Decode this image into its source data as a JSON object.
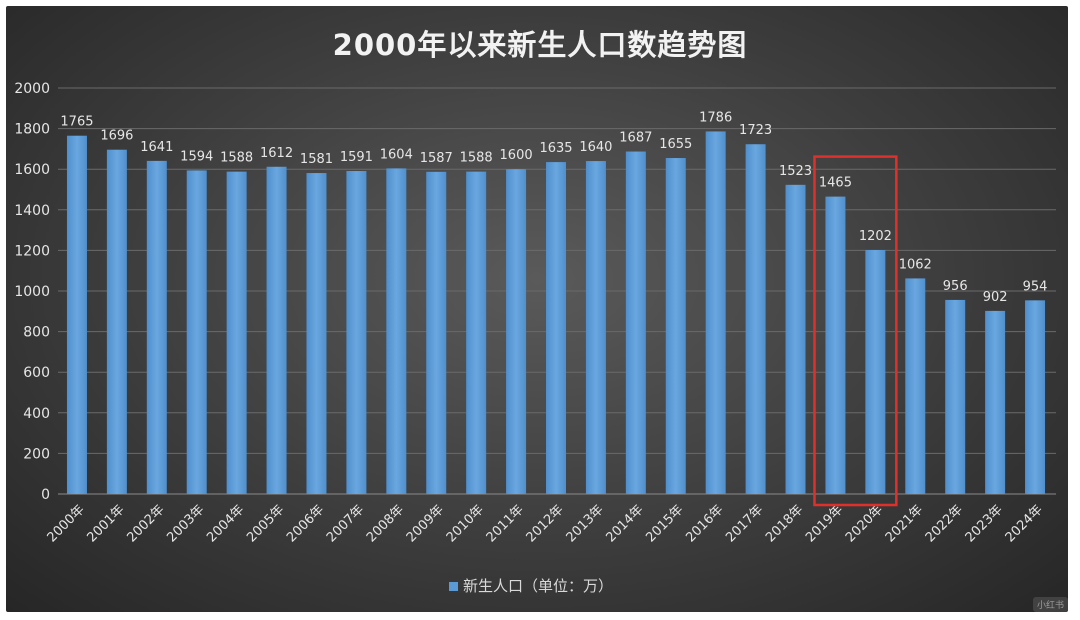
{
  "chart_data": {
    "type": "bar",
    "title": "2000年以来新生人口数趋势图",
    "categories": [
      "2000年",
      "2001年",
      "2002年",
      "2003年",
      "2004年",
      "2005年",
      "2006年",
      "2007年",
      "2008年",
      "2009年",
      "2010年",
      "2011年",
      "2012年",
      "2013年",
      "2014年",
      "2015年",
      "2016年",
      "2017年",
      "2018年",
      "2019年",
      "2020年",
      "2021年",
      "2022年",
      "2023年",
      "2024年"
    ],
    "series": [
      {
        "name": "新生人口（单位：万）",
        "values": [
          1765,
          1696,
          1641,
          1594,
          1588,
          1612,
          1581,
          1591,
          1604,
          1587,
          1588,
          1600,
          1635,
          1640,
          1687,
          1655,
          1786,
          1723,
          1523,
          1465,
          1202,
          1062,
          956,
          902,
          954
        ]
      }
    ],
    "yticks": [
      0,
      200,
      400,
      600,
      800,
      1000,
      1200,
      1400,
      1600,
      1800,
      2000
    ],
    "ylim": [
      0,
      2000
    ],
    "xlabel": "",
    "ylabel": "",
    "grid": true,
    "legend_position": "bottom",
    "highlight": {
      "categories": [
        "2019年",
        "2020年"
      ],
      "color": "#e0302b"
    },
    "colors": {
      "bar": "#5b9bd5",
      "bar_light": "#6fa8de",
      "text": "#e6e6e6",
      "grid": "#6a6a6a"
    }
  },
  "watermark": "小红书"
}
